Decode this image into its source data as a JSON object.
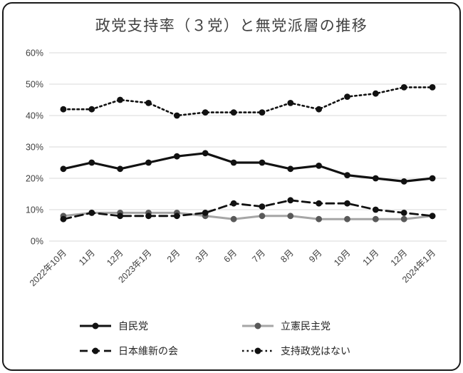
{
  "frame": {
    "border_color": "#1a1a1a",
    "background": "#ffffff"
  },
  "chart_data": {
    "type": "line",
    "title": "政党支持率（３党）と無党派層の推移",
    "categories": [
      "2022年10月",
      "11月",
      "12月",
      "2023年1月",
      "2月",
      "3月",
      "6月",
      "7月",
      "8月",
      "9月",
      "10月",
      "11月",
      "12月",
      "2024年1月"
    ],
    "series": [
      {
        "name": "自民党",
        "color": "#111111",
        "marker_color": "#111111",
        "dash": "",
        "width": 3.2,
        "values": [
          23,
          25,
          23,
          25,
          27,
          28,
          25,
          25,
          23,
          24,
          21,
          20,
          19,
          20
        ]
      },
      {
        "name": "立憲民主党",
        "color": "#a6a6a6",
        "marker_color": "#595959",
        "dash": "",
        "width": 3,
        "values": [
          8,
          9,
          9,
          9,
          9,
          8,
          7,
          8,
          8,
          7,
          7,
          7,
          7,
          8
        ]
      },
      {
        "name": "日本維新の会",
        "color": "#111111",
        "marker_color": "#111111",
        "dash": "11,6",
        "width": 2.8,
        "values": [
          7,
          9,
          8,
          8,
          8,
          9,
          12,
          11,
          13,
          12,
          12,
          10,
          9,
          8
        ]
      },
      {
        "name": "支持政党はない",
        "color": "#111111",
        "marker_color": "#111111",
        "dash": "2.5,4",
        "width": 2.6,
        "values": [
          42,
          42,
          45,
          44,
          40,
          41,
          41,
          41,
          44,
          42,
          46,
          47,
          49,
          49
        ]
      }
    ],
    "ylim": [
      0,
      60
    ],
    "ytick_step": 10,
    "ytick_labels": [
      "0%",
      "10%",
      "20%",
      "30%",
      "40%",
      "50%",
      "60%"
    ],
    "grid": true,
    "gridline_color": "#d9d9d9",
    "axis_label_color": "#404040",
    "legend_position": "bottom"
  }
}
